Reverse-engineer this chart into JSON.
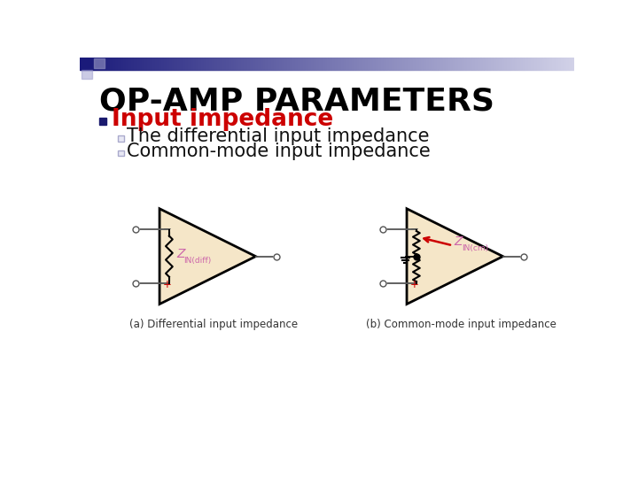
{
  "title": "OP-AMP PARAMETERS",
  "title_fontsize": 26,
  "title_color": "#000000",
  "bullet_text": "Input impedance",
  "bullet_color": "#cc0000",
  "bullet_fontsize": 19,
  "bullet_square_color": "#1a1a6e",
  "sub_bullet1": "The differential input impedance",
  "sub_bullet2": "Common-mode input impedance",
  "sub_fontsize": 15,
  "sub_color": "#111111",
  "sub_square_color": "#aaaacc",
  "caption_a": "(a) Differential input impedance",
  "caption_b": "(b) Common-mode input impedance",
  "caption_fontsize": 8.5,
  "bg_color": "#ffffff",
  "opamp_fill": "#f5e6c8",
  "opamp_edge": "#000000",
  "header_color_left": "#1a1a7a",
  "header_color_right": "#d0d0e8",
  "z_color": "#cc66aa",
  "plus_color": "#cc0000",
  "minus_color": "#555555",
  "wire_color": "#555555",
  "resistor_color": "#000000",
  "arrow_color": "#cc0000",
  "node_color": "#555555"
}
